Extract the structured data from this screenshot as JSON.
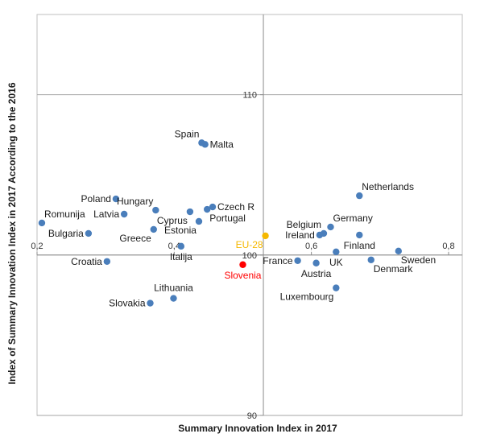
{
  "chart_data": {
    "type": "scatter",
    "xlabel": "Summary Innovation Index in 2017",
    "ylabel": "Index of Summary Innovation Index in 2017 According to the 2016",
    "xlim": [
      0.2,
      0.82
    ],
    "ylim": [
      90,
      115
    ],
    "x_cross": 0.53,
    "y_cross": 100,
    "x_ticks": [
      {
        "value": 0.2,
        "label": "0,2"
      },
      {
        "value": 0.4,
        "label": "0,4"
      },
      {
        "value": 0.6,
        "label": "0,6"
      },
      {
        "value": 0.8,
        "label": "0,8"
      }
    ],
    "y_ticks": [
      {
        "value": 90,
        "label": "90"
      },
      {
        "value": 100,
        "label": "100"
      },
      {
        "value": 110,
        "label": "110"
      }
    ],
    "grid": "major",
    "point_color": "#4a7ebb",
    "points": [
      {
        "name": "Romunija",
        "x": 0.207,
        "y": 102.0,
        "color": "#4a7ebb",
        "pos": "above-right"
      },
      {
        "name": "Bulgaria",
        "x": 0.275,
        "y": 101.35,
        "color": "#4a7ebb",
        "pos": "left"
      },
      {
        "name": "Croatia",
        "x": 0.302,
        "y": 99.6,
        "color": "#4a7ebb",
        "pos": "left"
      },
      {
        "name": "Poland",
        "x": 0.315,
        "y": 103.5,
        "color": "#4a7ebb",
        "pos": "left"
      },
      {
        "name": "Latvia",
        "x": 0.327,
        "y": 102.55,
        "color": "#4a7ebb",
        "pos": "left"
      },
      {
        "name": "Hungary",
        "x": 0.373,
        "y": 102.8,
        "color": "#4a7ebb",
        "pos": "above-left"
      },
      {
        "name": "Greece",
        "x": 0.37,
        "y": 101.6,
        "color": "#4a7ebb",
        "pos": "below-left"
      },
      {
        "name": "Italija",
        "x": 0.41,
        "y": 100.55,
        "color": "#4a7ebb",
        "pos": "below"
      },
      {
        "name": "Cyprus",
        "x": 0.423,
        "y": 102.7,
        "color": "#4a7ebb",
        "pos": "below-left"
      },
      {
        "name": "Estonia",
        "x": 0.436,
        "y": 102.1,
        "color": "#4a7ebb",
        "pos": "below-left"
      },
      {
        "name": "Portugal",
        "x": 0.448,
        "y": 102.85,
        "color": "#4a7ebb",
        "pos": "below-right"
      },
      {
        "name": "Czech R",
        "x": 0.456,
        "y": 103.0,
        "color": "#4a7ebb",
        "pos": "right"
      },
      {
        "name": "Spain",
        "x": 0.44,
        "y": 107.0,
        "color": "#4a7ebb",
        "pos": "above-left"
      },
      {
        "name": "Malta",
        "x": 0.445,
        "y": 106.9,
        "color": "#4a7ebb",
        "pos": "right"
      },
      {
        "name": "Lithuania",
        "x": 0.399,
        "y": 97.3,
        "color": "#4a7ebb",
        "pos": "above"
      },
      {
        "name": "Slovakia",
        "x": 0.365,
        "y": 97.0,
        "color": "#4a7ebb",
        "pos": "left"
      },
      {
        "name": "Slovenia",
        "x": 0.5,
        "y": 99.4,
        "color": "#ff0000",
        "pos": "below",
        "label_color": "#ff0000"
      },
      {
        "name": "EU-28",
        "x": 0.533,
        "y": 101.2,
        "color": "#f5b800",
        "pos": "below-left",
        "label_color": "#f5b800"
      },
      {
        "name": "France",
        "x": 0.58,
        "y": 99.65,
        "color": "#4a7ebb",
        "pos": "left"
      },
      {
        "name": "Austria",
        "x": 0.607,
        "y": 99.5,
        "color": "#4a7ebb",
        "pos": "below"
      },
      {
        "name": "Ireland",
        "x": 0.612,
        "y": 101.25,
        "color": "#4a7ebb",
        "pos": "left"
      },
      {
        "name": "Belgium",
        "x": 0.618,
        "y": 101.35,
        "color": "#4a7ebb",
        "pos": "above-left"
      },
      {
        "name": "Germany",
        "x": 0.628,
        "y": 101.75,
        "color": "#4a7ebb",
        "pos": "above-right"
      },
      {
        "name": "UK",
        "x": 0.636,
        "y": 100.2,
        "color": "#4a7ebb",
        "pos": "below"
      },
      {
        "name": "Luxembourg",
        "x": 0.636,
        "y": 97.95,
        "color": "#4a7ebb",
        "pos": "below-left"
      },
      {
        "name": "Netherlands",
        "x": 0.67,
        "y": 103.7,
        "color": "#4a7ebb",
        "pos": "above-right"
      },
      {
        "name": "Finland",
        "x": 0.67,
        "y": 101.25,
        "color": "#4a7ebb",
        "pos": "below"
      },
      {
        "name": "Denmark",
        "x": 0.687,
        "y": 99.7,
        "color": "#4a7ebb",
        "pos": "below-right"
      },
      {
        "name": "Sweden",
        "x": 0.727,
        "y": 100.25,
        "color": "#4a7ebb",
        "pos": "below-right"
      }
    ]
  }
}
